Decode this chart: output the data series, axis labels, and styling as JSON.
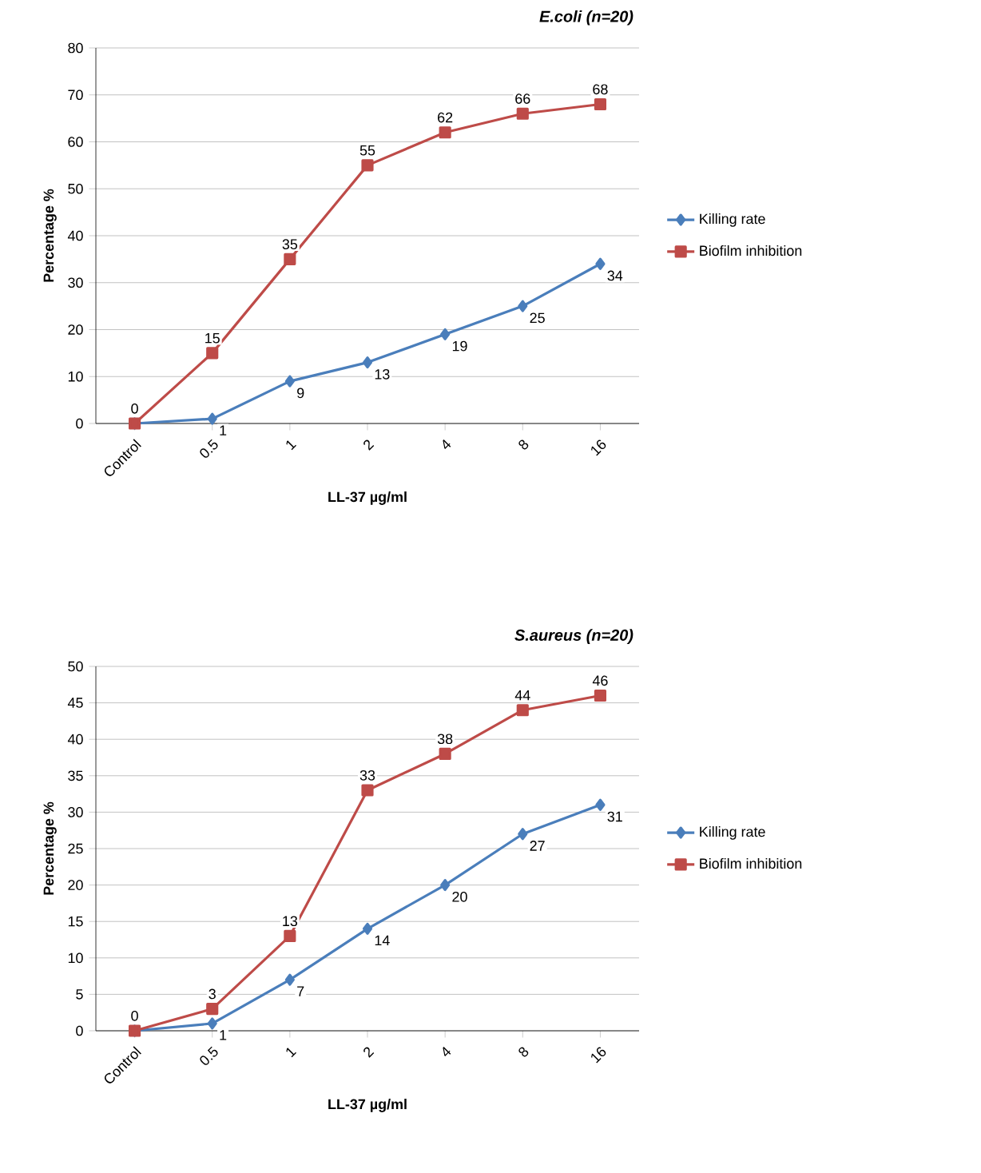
{
  "chart_data": [
    {
      "type": "line",
      "title": "E.coli (n=20)",
      "xlabel": "LL-37 µg/ml",
      "ylabel": "Percentage %",
      "categories": [
        "Control",
        "0.5",
        "1",
        "2",
        "4",
        "8",
        "16"
      ],
      "ylim": [
        0,
        80
      ],
      "yticks": [
        0,
        10,
        20,
        30,
        40,
        50,
        60,
        70,
        80
      ],
      "grid": "y",
      "legend": "right",
      "series": [
        {
          "name": "Killing rate",
          "color": "#4a7ebb",
          "marker": "diamond",
          "values": [
            0,
            1,
            9,
            13,
            19,
            25,
            34
          ],
          "value_labels": [
            null,
            "1",
            "9",
            "13",
            "19",
            "25",
            "34"
          ]
        },
        {
          "name": "Biofilm inhibition",
          "color": "#be4b48",
          "marker": "square",
          "values": [
            0,
            15,
            35,
            55,
            62,
            66,
            68
          ],
          "value_labels": [
            "0",
            "15",
            "35",
            "55",
            "62",
            "66",
            "68"
          ]
        }
      ]
    },
    {
      "type": "line",
      "title": "S.aureus (n=20)",
      "xlabel": "LL-37 µg/ml",
      "ylabel": "Percentage %",
      "categories": [
        "Control",
        "0.5",
        "1",
        "2",
        "4",
        "8",
        "16"
      ],
      "ylim": [
        0,
        50
      ],
      "yticks": [
        0,
        5,
        10,
        15,
        20,
        25,
        30,
        35,
        40,
        45,
        50
      ],
      "grid": "y",
      "legend": "right",
      "series": [
        {
          "name": "Killing rate",
          "color": "#4a7ebb",
          "marker": "diamond",
          "values": [
            0,
            1,
            7,
            14,
            20,
            27,
            31
          ],
          "value_labels": [
            null,
            "1",
            "7",
            "14",
            "20",
            "27",
            "31"
          ]
        },
        {
          "name": "Biofilm inhibition",
          "color": "#be4b48",
          "marker": "square",
          "values": [
            0,
            3,
            13,
            33,
            38,
            44,
            46
          ],
          "value_labels": [
            "0",
            "3",
            "13",
            "33",
            "38",
            "44",
            "46"
          ]
        }
      ]
    }
  ]
}
